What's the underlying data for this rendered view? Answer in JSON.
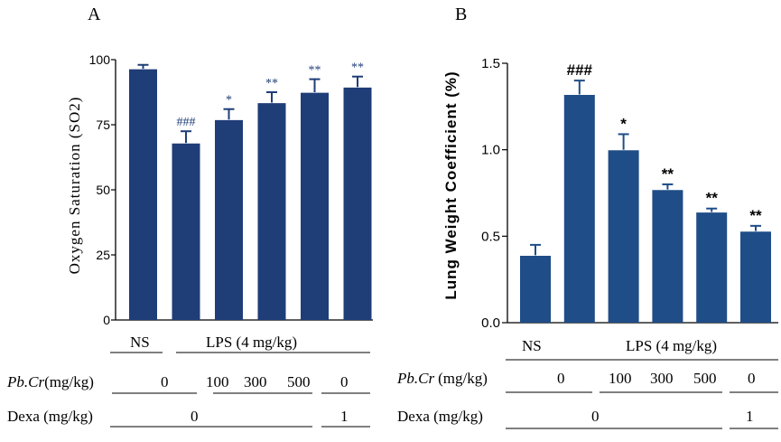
{
  "chart_data": [
    {
      "panel": "A",
      "type": "bar",
      "ylabel": "Oxygen Saturation (SO2)",
      "ylim": [
        0,
        100
      ],
      "yticks": [
        "0",
        "25",
        "50",
        "75",
        "100"
      ],
      "categories": [
        "NS",
        "LPS",
        "LPS + Pb.Cr 100",
        "LPS + Pb.Cr 300",
        "LPS + Pb.Cr 500",
        "LPS + Dexa 1"
      ],
      "values": [
        96.5,
        68,
        77,
        83.5,
        87.5,
        89.5
      ],
      "errors": [
        1.5,
        4.5,
        4,
        4,
        5,
        4
      ],
      "significance": [
        "",
        "###",
        "*",
        "**",
        "**",
        "**"
      ],
      "bar_color": "#1f3d77"
    },
    {
      "panel": "B",
      "type": "bar",
      "ylabel": "Lung Weight Coefficient  (%)",
      "ylim": [
        0,
        1.5
      ],
      "yticks": [
        "0.0",
        "0.5",
        "1.0",
        "1.5"
      ],
      "categories": [
        "NS",
        "LPS",
        "LPS + Pb.Cr 100",
        "LPS + Pb.Cr 300",
        "LPS + Pb.Cr 500",
        "LPS + Dexa 1"
      ],
      "values": [
        0.39,
        1.32,
        1.0,
        0.77,
        0.64,
        0.53
      ],
      "errors": [
        0.06,
        0.08,
        0.09,
        0.03,
        0.02,
        0.03
      ],
      "significance": [
        "",
        "###",
        "*",
        "**",
        "**",
        "**"
      ],
      "bar_color": "#1f4d87"
    }
  ],
  "conditions": {
    "A": {
      "ns": "NS",
      "lps": "LPS (4 mg/kg)",
      "pbcr_name": "Pb.Cr",
      "pbcr_unit": "(mg/kg)",
      "pbcr_values": [
        "0",
        "100",
        "300",
        "500",
        "0"
      ],
      "dexa_label": "Dexa (mg/kg)",
      "dexa_values": [
        "0",
        "1"
      ]
    },
    "B": {
      "ns": "NS",
      "lps": "LPS (4 mg/kg)",
      "pbcr_name": "Pb.Cr",
      "pbcr_unit": "(mg/kg)",
      "pbcr_values": [
        "0",
        "100",
        "300",
        "500",
        "0"
      ],
      "dexa_label": "Dexa (mg/kg)",
      "dexa_values": [
        "0",
        "1"
      ]
    }
  }
}
